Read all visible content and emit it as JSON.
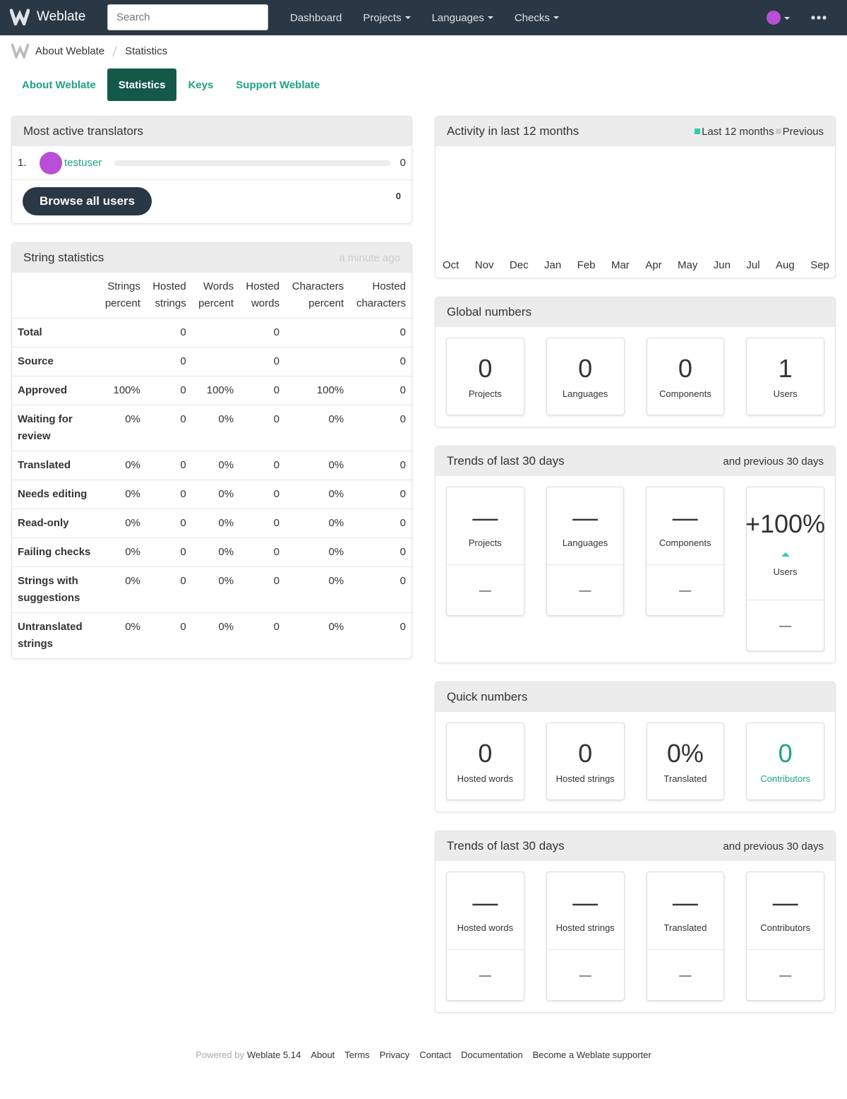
{
  "navbar": {
    "brand": "Weblate",
    "search_placeholder": "Search",
    "menu": [
      "Dashboard",
      "Projects",
      "Languages",
      "Checks"
    ]
  },
  "breadcrumb": [
    "About Weblate",
    "Statistics"
  ],
  "tabs": {
    "items": [
      "About Weblate",
      "Statistics",
      "Keys",
      "Support Weblate"
    ],
    "active": 1
  },
  "translators": {
    "title": "Most active translators",
    "rows": [
      {
        "rank": "1.",
        "name": "testuser",
        "count": 0
      }
    ],
    "button": "Browse all users",
    "total": 0
  },
  "string_stats": {
    "title": "String statistics",
    "updated": "a minute ago",
    "columns": [
      "Strings percent",
      "Hosted strings",
      "Words percent",
      "Hosted words",
      "Characters percent",
      "Hosted characters"
    ],
    "rows": [
      {
        "label": "Total",
        "cells": [
          null,
          0,
          null,
          0,
          null,
          0
        ]
      },
      {
        "label": "Source",
        "cells": [
          null,
          0,
          null,
          0,
          null,
          0
        ]
      },
      {
        "label": "Approved",
        "cells": [
          "100%",
          0,
          "100%",
          0,
          "100%",
          0
        ]
      },
      {
        "label": "Waiting for review",
        "cells": [
          "0%",
          0,
          "0%",
          0,
          "0%",
          0
        ]
      },
      {
        "label": "Translated",
        "cells": [
          "0%",
          0,
          "0%",
          0,
          "0%",
          0
        ]
      },
      {
        "label": "Needs editing",
        "cells": [
          "0%",
          0,
          "0%",
          0,
          "0%",
          0
        ]
      },
      {
        "label": "Read-only",
        "cells": [
          "0%",
          0,
          "0%",
          0,
          "0%",
          0
        ]
      },
      {
        "label": "Failing checks",
        "cells": [
          "0%",
          0,
          "0%",
          0,
          "0%",
          0
        ]
      },
      {
        "label": "Strings with suggestions",
        "cells": [
          "0%",
          0,
          "0%",
          0,
          "0%",
          0
        ]
      },
      {
        "label": "Untranslated strings",
        "cells": [
          "0%",
          0,
          "0%",
          0,
          "0%",
          0
        ]
      }
    ]
  },
  "activity": {
    "title": "Activity in last 12 months",
    "legend": [
      {
        "name": "Last 12 months",
        "color": "#2eccaa"
      },
      {
        "name": "Previous",
        "color": "#cccccc"
      }
    ],
    "months": [
      "Oct",
      "Nov",
      "Dec",
      "Jan",
      "Feb",
      "Mar",
      "Apr",
      "May",
      "Jun",
      "Jul",
      "Aug",
      "Sep"
    ]
  },
  "global_numbers": {
    "title": "Global numbers",
    "cards": [
      {
        "value": 0,
        "label": "Projects"
      },
      {
        "value": 0,
        "label": "Languages"
      },
      {
        "value": 0,
        "label": "Components"
      },
      {
        "value": 1,
        "label": "Users"
      }
    ]
  },
  "trends": {
    "title": "Trends of last 30 days",
    "subtitle": "and previous 30 days",
    "cards": [
      {
        "value": "—",
        "label": "Projects",
        "previous": "—"
      },
      {
        "value": "—",
        "label": "Languages",
        "previous": "—"
      },
      {
        "value": "—",
        "label": "Components",
        "previous": "—"
      },
      {
        "value": "+100%",
        "label": "Users",
        "previous": "—",
        "trend": "up"
      }
    ]
  },
  "quick_numbers": {
    "title": "Quick numbers",
    "cards": [
      {
        "value": 0,
        "label": "Hosted words"
      },
      {
        "value": 0,
        "label": "Hosted strings"
      },
      {
        "value": "0%",
        "label": "Translated"
      },
      {
        "value": 0,
        "label": "Contributors",
        "link": true
      }
    ]
  },
  "quick_trends": {
    "title": "Trends of last 30 days",
    "subtitle": "and previous 30 days",
    "cards": [
      {
        "value": "—",
        "label": "Hosted words",
        "previous": "—"
      },
      {
        "value": "—",
        "label": "Hosted strings",
        "previous": "—"
      },
      {
        "value": "—",
        "label": "Translated",
        "previous": "—"
      },
      {
        "value": "—",
        "label": "Contributors",
        "previous": "—"
      }
    ]
  },
  "footer": {
    "powered_by": "Powered by",
    "version": "Weblate 5.14",
    "links": [
      "About",
      "Terms",
      "Privacy",
      "Contact",
      "Documentation",
      "Become a Weblate supporter"
    ]
  }
}
